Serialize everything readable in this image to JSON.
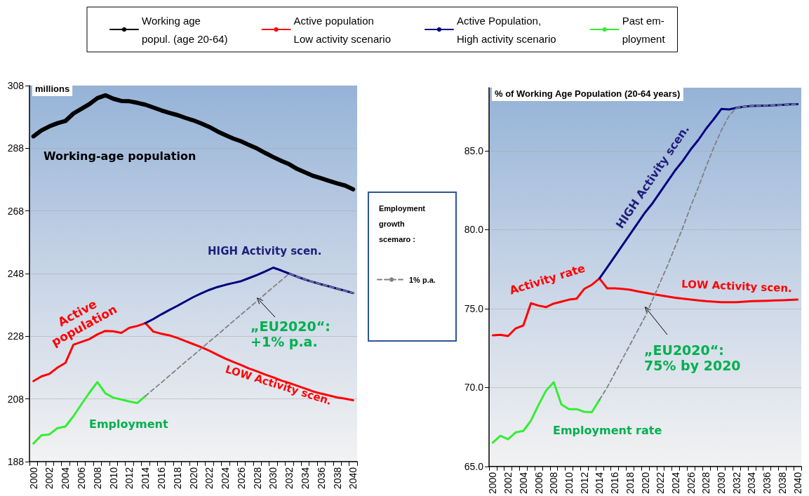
{
  "chart_data": [
    {
      "type": "line",
      "ylabel": "millions",
      "legend": "top",
      "legend_title": "Employment growth scemaro :",
      "grid": "y",
      "marker": "none",
      "line_style": "solid",
      "categories": [
        "2000",
        null,
        "2002",
        null,
        "2004",
        null,
        "2006",
        null,
        "2008",
        null,
        "2010",
        null,
        "2012",
        null,
        "2014",
        null,
        "2016",
        null,
        "2018",
        null,
        "2020",
        null,
        "2022",
        null,
        "2024",
        null,
        "2026",
        null,
        "2028",
        null,
        "2030",
        null,
        "2032",
        null,
        "2034",
        null,
        "2036",
        null,
        "2038",
        null,
        "2040"
      ],
      "ylim": [
        188,
        308
      ],
      "yticks": [
        188,
        208,
        228,
        248,
        268,
        288,
        308
      ],
      "series": [
        {
          "name": "Working age\npopul. (age 20-64)",
          "color": "#000000",
          "values": [
            291.8,
            293.7,
            295.0,
            296.0,
            296.7,
            299.1,
            300.6,
            302.1,
            304.0,
            304.9,
            303.8,
            303.1,
            303.0,
            302.5,
            301.9,
            301.0,
            300.1,
            299.3,
            298.6,
            297.7,
            296.9,
            295.9,
            294.8,
            293.4,
            292.2,
            291.1,
            290.2,
            289.0,
            287.9,
            286.5,
            285.2,
            284.0,
            282.9,
            281.4,
            280.3,
            279.2,
            278.4,
            277.6,
            276.8,
            276.1,
            274.9
          ]
        },
        {
          "name": "Active population\nLow activity scenario",
          "color": "#ff0000",
          "values": [
            213.7,
            215.2,
            216.0,
            218.0,
            219.5,
            225.3,
            226.2,
            227.1,
            228.6,
            229.7,
            229.6,
            229.1,
            230.7,
            231.3,
            232.2,
            229.5,
            228.8,
            228.3,
            227.5,
            226.5,
            225.5,
            224.5,
            223.4,
            222.1,
            220.9,
            219.8,
            218.8,
            217.7,
            216.8,
            215.8,
            214.9,
            213.9,
            213.1,
            212.2,
            211.3,
            210.4,
            209.7,
            209.1,
            208.5,
            208.1,
            207.6
          ]
        },
        {
          "name": "Active Population,\nHigh activity scenario",
          "color": "#000080",
          "values": [
            null,
            null,
            null,
            null,
            null,
            null,
            null,
            null,
            null,
            null,
            null,
            null,
            null,
            null,
            232.2,
            233.5,
            235.0,
            236.4,
            237.7,
            239.1,
            240.5,
            241.7,
            242.8,
            243.7,
            244.4,
            245.0,
            245.6,
            246.6,
            247.6,
            248.7,
            249.9,
            249.0,
            248.0,
            247.0,
            246.1,
            245.3,
            244.6,
            243.9,
            243.2,
            242.5,
            241.8
          ]
        },
        {
          "name": "Past em-\nployment",
          "color": "#33ee33",
          "values": [
            193.8,
            196.4,
            196.7,
            198.7,
            199.2,
            202.5,
            206.3,
            210.0,
            213.4,
            209.8,
            208.4,
            207.8,
            207.2,
            206.7,
            208.9,
            null,
            null,
            null,
            null,
            null,
            null,
            null,
            null,
            null,
            null,
            null,
            null,
            null,
            null,
            null,
            null,
            null,
            null,
            null,
            null,
            null,
            null,
            null,
            null,
            null,
            null
          ]
        },
        {
          "name": "1% p.a.",
          "color": "#808080",
          "line_style": "dashed",
          "values": [
            null,
            null,
            null,
            null,
            null,
            null,
            null,
            null,
            null,
            null,
            null,
            null,
            null,
            null,
            208.9,
            211.1,
            213.2,
            215.4,
            217.6,
            219.8,
            221.9,
            224.1,
            226.3,
            228.4,
            230.6,
            232.8,
            235.0,
            237.1,
            239.3,
            241.5,
            243.7,
            245.8,
            248.0,
            247.0,
            246.1,
            245.3,
            244.6,
            243.9,
            243.2,
            242.5,
            241.8
          ]
        }
      ],
      "annotations": [
        "Working-age population",
        "HIGH Activity scen.",
        "Active\npopulation",
        {
          "text": "„EU2020“:\n+1% p.a.",
          "x": "2028",
          "y": 240.2
        },
        "LOW Activity scen.",
        "Employment"
      ]
    },
    {
      "type": "line",
      "ylabel": "% of Working Age Population (20-64 years)",
      "grid": "y",
      "marker": "none",
      "line_style": "solid",
      "categories": [
        "2000",
        null,
        "2002",
        null,
        "2004",
        null,
        "2006",
        null,
        "2008",
        null,
        "2010",
        null,
        "2012",
        null,
        "2014",
        null,
        "2016",
        null,
        "2018",
        null,
        "2020",
        null,
        "2022",
        null,
        "2024",
        null,
        "2026",
        null,
        "2028",
        null,
        "2030",
        null,
        "2032",
        null,
        "2034",
        null,
        "2036",
        null,
        "2038",
        null,
        "2040"
      ],
      "ylim": [
        65,
        89
      ],
      "yticks": [
        {
          "value": 65,
          "label": "65.0"
        },
        {
          "value": 70,
          "label": "70.0"
        },
        {
          "value": 75,
          "label": "75.0"
        },
        {
          "value": 80,
          "label": "80.0"
        },
        {
          "value": 85,
          "label": "85.0"
        }
      ],
      "series": [
        {
          "color": "#ff0000",
          "values": [
            73.31,
            73.34,
            73.26,
            73.75,
            73.93,
            75.34,
            75.19,
            75.1,
            75.32,
            75.44,
            75.57,
            75.63,
            76.25,
            76.51,
            76.91,
            76.29,
            76.29,
            76.25,
            76.2,
            76.1,
            76.01,
            75.92,
            75.84,
            75.76,
            75.69,
            75.63,
            75.57,
            75.52,
            75.47,
            75.44,
            75.41,
            75.41,
            75.41,
            75.44,
            75.47,
            75.49,
            75.5,
            75.52,
            75.53,
            75.55,
            75.57
          ]
        },
        {
          "color": "#000080",
          "values": [
            null,
            null,
            null,
            null,
            null,
            null,
            null,
            null,
            null,
            null,
            null,
            null,
            null,
            null,
            76.91,
            77.6,
            78.3,
            79.0,
            79.7,
            80.4,
            81.1,
            81.7,
            82.4,
            83.1,
            83.8,
            84.4,
            85.1,
            85.7,
            86.4,
            87.0,
            87.65,
            87.62,
            87.72,
            87.8,
            87.84,
            87.86,
            87.87,
            87.89,
            87.91,
            87.94,
            87.96
          ]
        },
        {
          "color": "#33ee33",
          "values": [
            66.51,
            66.94,
            66.72,
            67.16,
            67.25,
            67.9,
            68.9,
            69.81,
            70.34,
            68.93,
            68.63,
            68.63,
            68.46,
            68.44,
            69.22,
            null,
            null,
            null,
            null,
            null,
            null,
            null,
            null,
            null,
            null,
            null,
            null,
            null,
            null,
            null,
            null,
            null,
            null,
            null,
            null,
            null,
            null,
            null,
            null,
            null,
            null
          ]
        },
        {
          "color": "#808080",
          "line_style": "dashed",
          "values": [
            null,
            null,
            null,
            null,
            null,
            null,
            null,
            null,
            null,
            null,
            null,
            null,
            null,
            null,
            69.22,
            70.0,
            70.9,
            71.8,
            72.7,
            73.6,
            74.5,
            75.6,
            76.7,
            77.8,
            79.0,
            80.2,
            81.5,
            82.7,
            84.0,
            85.2,
            86.3,
            87.2,
            87.72,
            87.8,
            87.84,
            87.86,
            87.87,
            87.89,
            87.91,
            87.94,
            87.96
          ]
        }
      ],
      "annotations": [
        "HIGH Activity scen.",
        "Activity rate",
        "LOW Activity scen.",
        {
          "text": "„EU2020“:\n75% by 2020",
          "x": "2020",
          "y": 75.1
        },
        "Employment rate"
      ]
    }
  ]
}
